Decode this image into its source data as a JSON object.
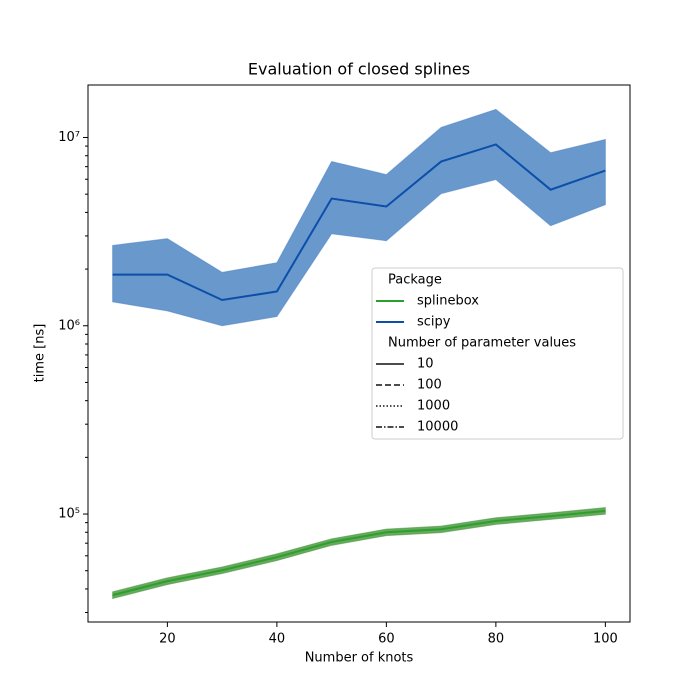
{
  "chart_data": {
    "type": "line",
    "title": "Evaluation of closed splines",
    "xlabel": "Number of knots",
    "ylabel": "time [ns]",
    "x": [
      10,
      20,
      30,
      40,
      50,
      60,
      70,
      80,
      90,
      100
    ],
    "xlim": [
      5.5,
      104.5
    ],
    "xticks": [
      20,
      40,
      60,
      80,
      100
    ],
    "yscale": "log",
    "ylim": [
      26700,
      19000000
    ],
    "yticks": [
      {
        "value": 100000,
        "label": "10⁵"
      },
      {
        "value": 1000000,
        "label": "10⁶"
      },
      {
        "value": 10000000,
        "label": "10⁷"
      }
    ],
    "yminorticks": [
      30000,
      40000,
      50000,
      60000,
      70000,
      80000,
      90000,
      200000,
      300000,
      400000,
      500000,
      600000,
      700000,
      800000,
      900000,
      2000000,
      3000000,
      4000000,
      5000000,
      6000000,
      7000000,
      8000000,
      9000000
    ],
    "legend_title": "Package",
    "series": [
      {
        "name": "splinebox",
        "color": "#2ca02c",
        "band_color": "#4e9a43",
        "values": [
          37100,
          44000,
          50300,
          59000,
          71000,
          80000,
          83000,
          91800,
          97500,
          104000
        ],
        "lower": [
          35600,
          42200,
          48300,
          56600,
          68200,
          76800,
          79700,
          88100,
          93600,
          99800
        ],
        "upper": [
          38600,
          45800,
          52300,
          61400,
          73800,
          83200,
          86300,
          95500,
          101400,
          108200
        ]
      },
      {
        "name": "scipy",
        "color": "#0b4fa8",
        "band_color": "#4f86c4",
        "values": [
          1870000,
          1870000,
          1370000,
          1520000,
          4740000,
          4300000,
          7450000,
          9180000,
          5280000,
          6670000
        ],
        "lower": [
          1340000,
          1200000,
          1000000,
          1120000,
          3080000,
          2830000,
          5030000,
          5980000,
          3400000,
          4400000
        ],
        "upper": [
          2670000,
          2900000,
          1920000,
          2160000,
          7450000,
          6350000,
          11300000,
          14100000,
          8300000,
          9750000
        ]
      }
    ],
    "style_legend": {
      "title": "Number of parameter values",
      "entries": [
        {
          "label": "10",
          "dash": "solid"
        },
        {
          "label": "100",
          "dash": "dashed"
        },
        {
          "label": "1000",
          "dash": "dotted"
        },
        {
          "label": "10000",
          "dash": "dashdot"
        }
      ]
    }
  }
}
